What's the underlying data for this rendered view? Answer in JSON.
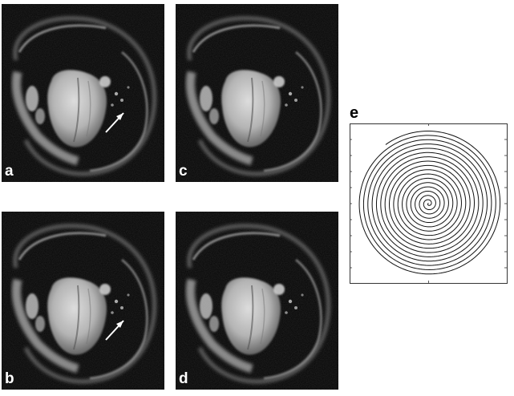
{
  "panels": {
    "a": {
      "label": "a"
    },
    "b": {
      "label": "b"
    },
    "c": {
      "label": "c"
    },
    "d": {
      "label": "d"
    }
  },
  "spiral": {
    "label": "e",
    "turns": 17,
    "colors": {
      "line": "#111111",
      "frame": "#333333"
    }
  },
  "colors": {
    "background": "#ffffff",
    "panel": "#000000",
    "label": "#ffffff"
  }
}
